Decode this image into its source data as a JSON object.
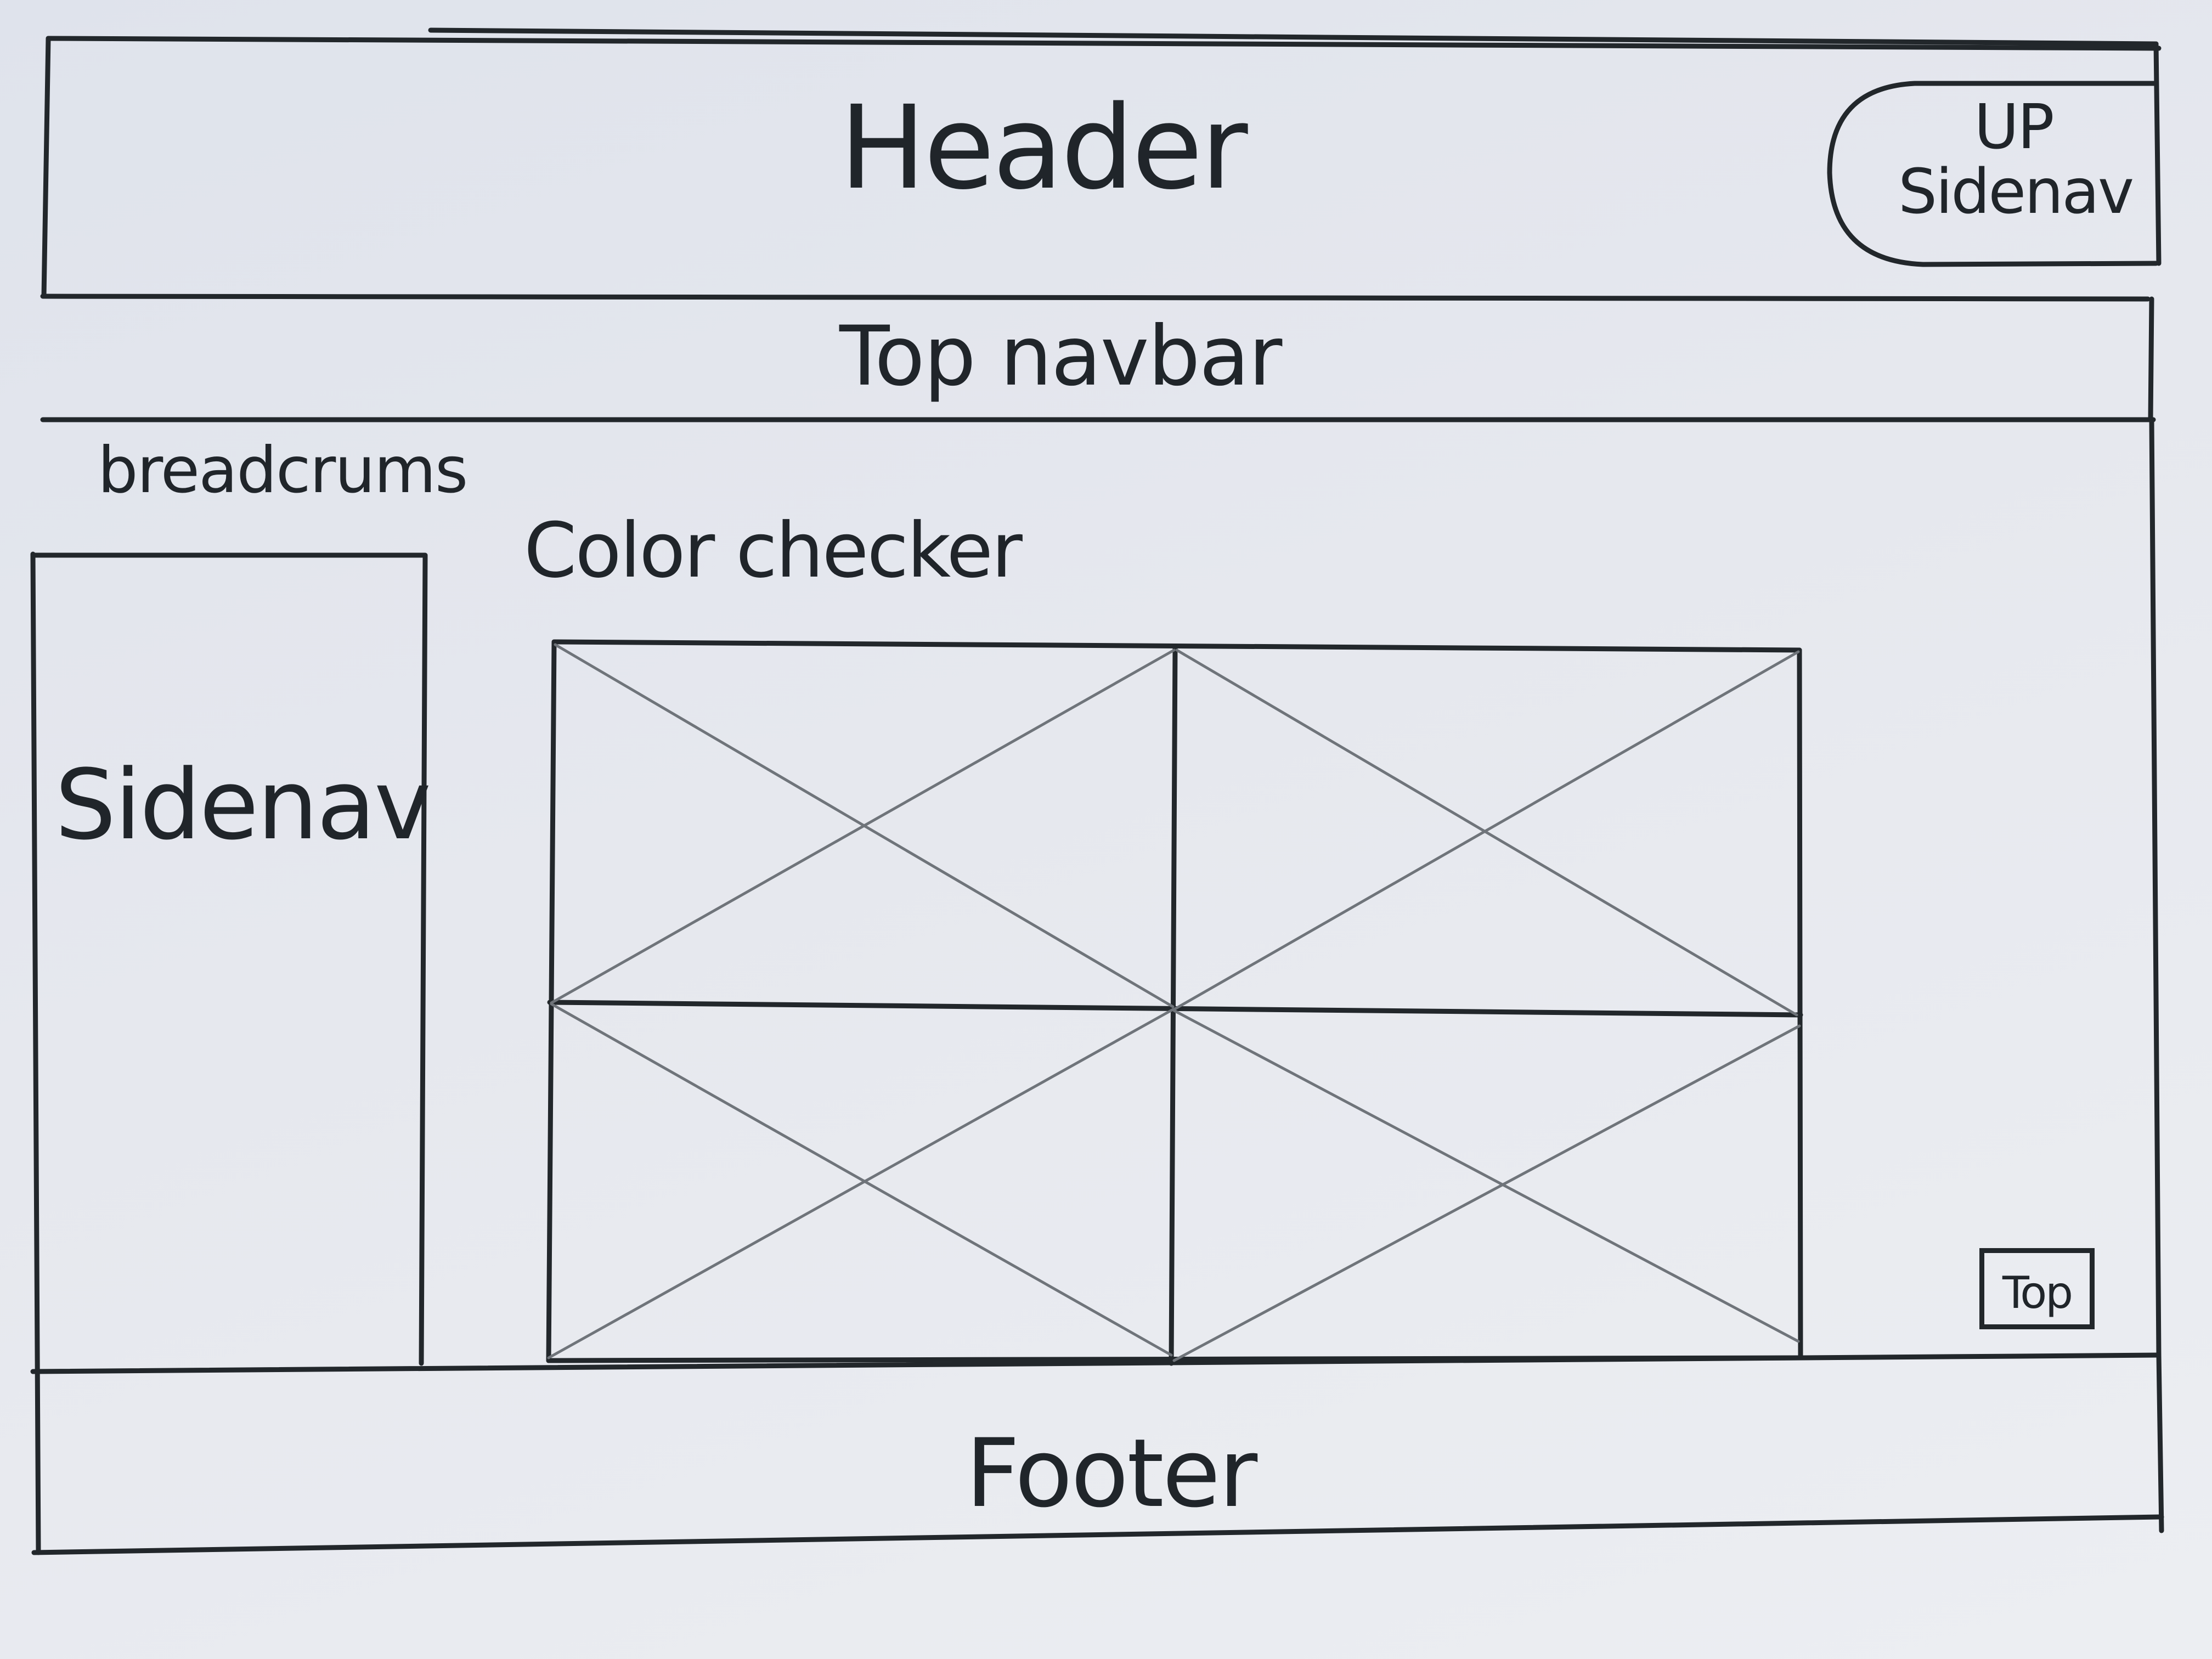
{
  "header": {
    "title": "Header",
    "up_sidenav_label": "UP\nSidenav"
  },
  "top_navbar": {
    "label": "Top navbar"
  },
  "breadcrumbs": {
    "label": "breadcrums"
  },
  "sidenav": {
    "label": "Sidenav"
  },
  "main": {
    "title": "Color checker",
    "image_grid": {
      "rows": 2,
      "columns": 2,
      "placeholder_icon": "crossed-box-image-placeholder-icon"
    },
    "top_button_label": "Top"
  },
  "footer": {
    "label": "Footer"
  },
  "colors": {
    "ink": "#22272b",
    "pencil": "#6f747a",
    "paper": "#e6e8ee"
  }
}
